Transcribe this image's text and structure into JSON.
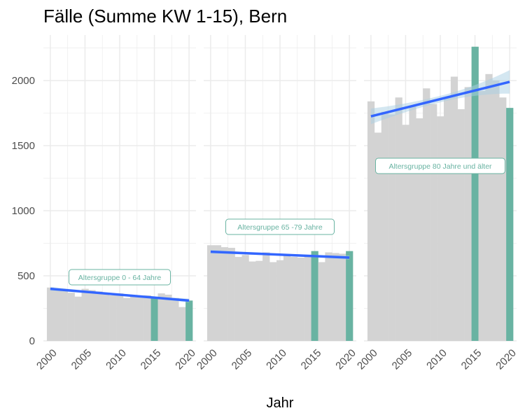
{
  "chart_data": {
    "type": "bar",
    "title": "Fälle (Summe KW 1-15), Bern",
    "xlabel": "Jahr",
    "ylabel": "",
    "ylim": [
      0,
      2350
    ],
    "xlim": [
      1999,
      2021
    ],
    "x_ticks": [
      2000,
      2005,
      2010,
      2015,
      2020
    ],
    "y_ticks": [
      0,
      500,
      1000,
      1500,
      2000
    ],
    "grid": true,
    "colors": {
      "normal_bar": "#d3d3d3",
      "highlight_bar": "#69b3a2",
      "trend_line": "#3366ff",
      "confidence_band": "#a9cfe3",
      "label_text": "#69b3a2",
      "grid": "#ebebeb"
    },
    "highlight_years": [
      2015,
      2020
    ],
    "panels": [
      {
        "label": "Altersgruppe 0 - 64 Jahre",
        "years": [
          2000,
          2001,
          2002,
          2003,
          2004,
          2005,
          2006,
          2007,
          2008,
          2009,
          2010,
          2011,
          2012,
          2013,
          2014,
          2015,
          2016,
          2017,
          2018,
          2019,
          2020
        ],
        "values": [
          410,
          390,
          385,
          370,
          340,
          400,
          390,
          380,
          360,
          350,
          365,
          330,
          340,
          345,
          350,
          335,
          365,
          355,
          330,
          260,
          310
        ],
        "trend": {
          "start": [
            2000,
            400
          ],
          "end": [
            2020,
            310
          ]
        },
        "ci_halfwidth": [
          15,
          8,
          15
        ]
      },
      {
        "label": "Altersgruppe 65 -79 Jahre",
        "years": [
          2000,
          2001,
          2002,
          2003,
          2004,
          2005,
          2006,
          2007,
          2008,
          2009,
          2010,
          2011,
          2012,
          2013,
          2014,
          2015,
          2016,
          2017,
          2018,
          2019,
          2020
        ],
        "values": [
          735,
          735,
          720,
          715,
          645,
          660,
          610,
          615,
          680,
          605,
          620,
          665,
          645,
          640,
          655,
          690,
          605,
          680,
          675,
          670,
          690
        ],
        "trend": {
          "start": [
            2000,
            685
          ],
          "end": [
            2020,
            640
          ]
        },
        "ci_halfwidth": [
          16,
          8,
          16
        ]
      },
      {
        "label": "Altersgruppe 80 Jahre und älter",
        "years": [
          2000,
          2001,
          2002,
          2003,
          2004,
          2005,
          2006,
          2007,
          2008,
          2009,
          2010,
          2011,
          2012,
          2013,
          2014,
          2015,
          2016,
          2017,
          2018,
          2019,
          2020
        ],
        "values": [
          1840,
          1600,
          1760,
          1740,
          1870,
          1660,
          1800,
          1710,
          1940,
          1820,
          1725,
          1870,
          2030,
          1780,
          1950,
          2260,
          1920,
          2050,
          2000,
          1870,
          1790
        ],
        "trend": {
          "start": [
            2000,
            1725
          ],
          "end": [
            2020,
            1990
          ]
        },
        "ci_halfwidth": [
          60,
          25,
          90
        ]
      }
    ]
  }
}
